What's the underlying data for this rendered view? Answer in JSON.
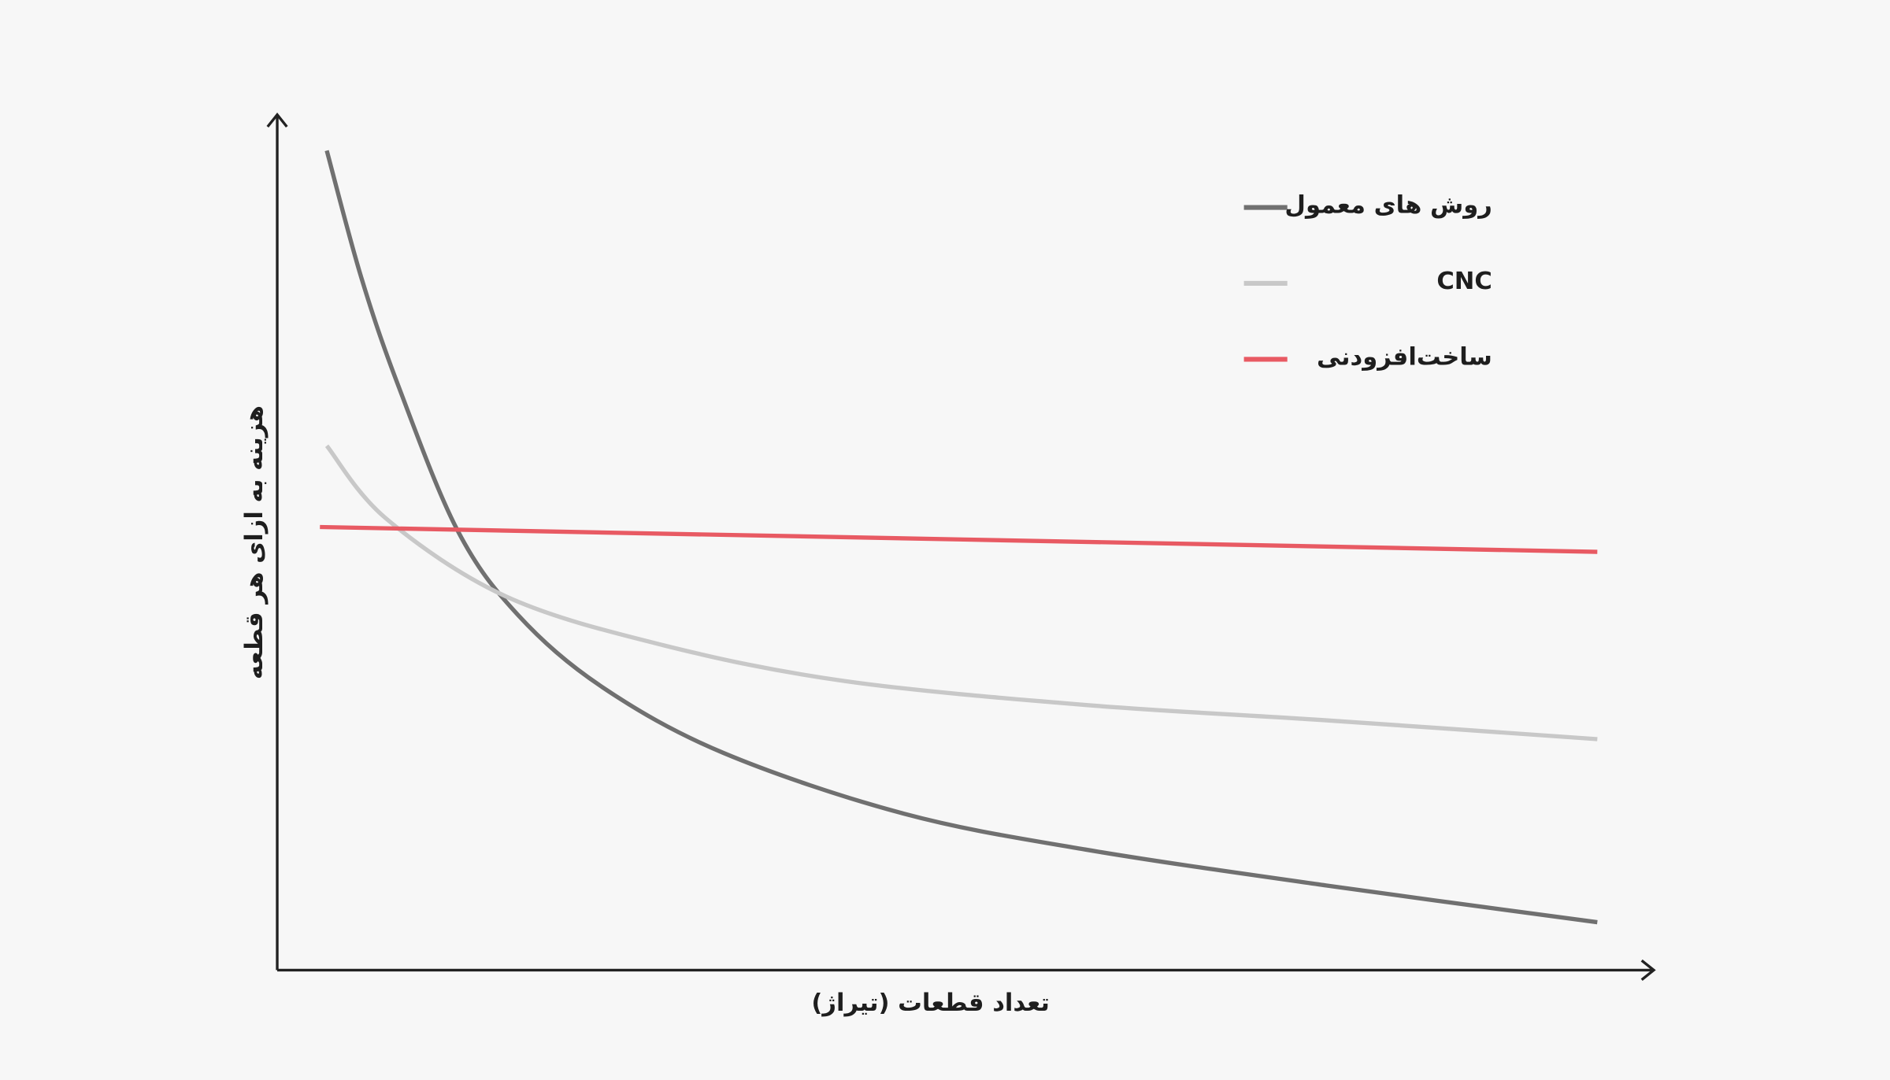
{
  "chart_data": {
    "type": "line",
    "x_label": "تعداد قطعات (تیراژ)",
    "y_label": "هزینه به ازای هر قطعه",
    "xlim": [
      0,
      100
    ],
    "ylim": [
      0,
      100
    ],
    "series": [
      {
        "name": "روش های معمول",
        "color": "#707070",
        "x": [
          3.6,
          6.1,
          8.8,
          13.1,
          17.5,
          23.6,
          32.4,
          45.5,
          58.7,
          76.2,
          95.9
        ],
        "values": [
          95.8,
          81.0,
          68.3,
          51.4,
          41.5,
          33.1,
          25.4,
          18.3,
          14.1,
          9.9,
          5.6
        ]
      },
      {
        "name": "CNC",
        "color": "#c8c8c8",
        "x": [
          3.6,
          7.9,
          16.6,
          28.0,
          41.2,
          58.7,
          76.2,
          95.9
        ],
        "values": [
          61.3,
          52.8,
          43.7,
          38.0,
          33.8,
          31.0,
          29.2,
          27.0
        ]
      },
      {
        "name": "ساخت‌افزودنی",
        "color": "#e85a63",
        "x": [
          3.1,
          95.9
        ],
        "values": [
          51.8,
          48.9
        ]
      }
    ]
  }
}
